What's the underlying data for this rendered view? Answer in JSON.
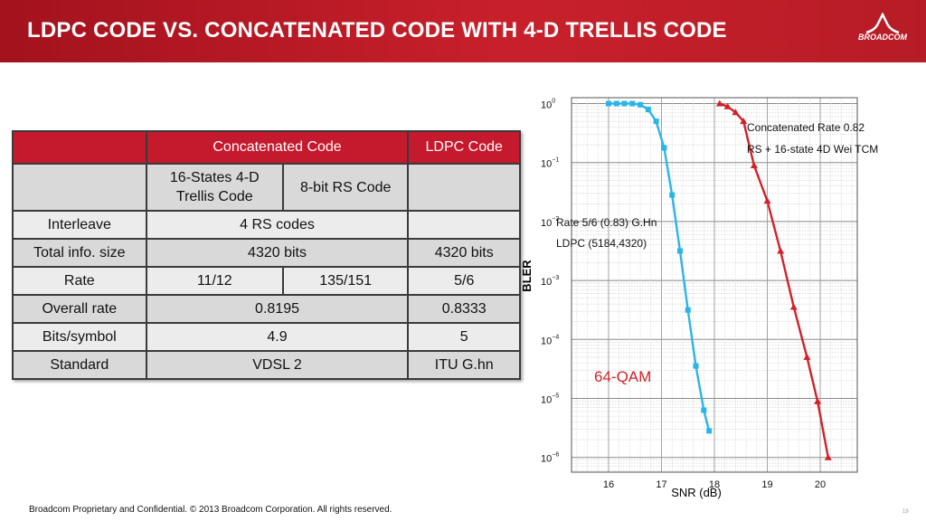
{
  "header": {
    "title": "LDPC CODE VS. CONCATENATED CODE WITH 4-D TRELLIS CODE",
    "logo_text": "BROADCOM"
  },
  "table": {
    "headers": [
      "",
      "Concatenated Code",
      "LDPC Code"
    ],
    "sub_headers": [
      "16-States 4-D Trellis Code",
      "8-bit RS Code"
    ],
    "rows": [
      {
        "label": "Interleave",
        "concat": "4 RS codes",
        "ldpc": ""
      },
      {
        "label": "Total info. size",
        "concat": "4320 bits",
        "ldpc": "4320 bits"
      },
      {
        "label": "Rate",
        "concat_trellis": "11/12",
        "concat_rs": "135/151",
        "ldpc": "5/6"
      },
      {
        "label": "Overall rate",
        "concat": "0.8195",
        "ldpc": "0.8333"
      },
      {
        "label": "Bits/symbol",
        "concat": "4.9",
        "ldpc": "5"
      },
      {
        "label": "Standard",
        "concat": "VDSL 2",
        "ldpc": "ITU G.hn"
      }
    ]
  },
  "chart_data": {
    "type": "line",
    "xlabel": "SNR (dB)",
    "ylabel": "BLER",
    "xlim": [
      15.3,
      20.7
    ],
    "ylim_log10": [
      -6.25,
      0.1
    ],
    "x_ticks": [
      16,
      17,
      18,
      19,
      20
    ],
    "x_tick_labels": [
      "16",
      "17",
      "18",
      "19",
      "20"
    ],
    "y_ticks_log10": [
      0,
      -1,
      -2,
      -3,
      -4,
      -5,
      -6
    ],
    "y_tick_labels": [
      "10",
      "10",
      "10",
      "10",
      "10",
      "10",
      "10"
    ],
    "y_tick_exponents": [
      "0",
      "−1",
      "−2",
      "−3",
      "−4",
      "−5",
      "−6"
    ],
    "log_scale_y": true,
    "grid": true,
    "series": [
      {
        "color": "#29b5e8",
        "marker": "square",
        "points": [
          [
            16.0,
            0.0
          ],
          [
            16.15,
            0.0
          ],
          [
            16.3,
            0.0
          ],
          [
            16.45,
            0.0
          ],
          [
            16.6,
            -0.02
          ],
          [
            16.75,
            -0.1
          ],
          [
            16.9,
            -0.3
          ],
          [
            17.05,
            -0.75
          ],
          [
            17.2,
            -1.55
          ],
          [
            17.35,
            -2.5
          ],
          [
            17.5,
            -3.5
          ],
          [
            17.65,
            -4.45
          ],
          [
            17.8,
            -5.2
          ],
          [
            17.9,
            -5.55
          ]
        ]
      },
      {
        "color": "#d12228",
        "marker": "triangle",
        "points": [
          [
            18.1,
            0.0
          ],
          [
            18.25,
            -0.05
          ],
          [
            18.4,
            -0.15
          ],
          [
            18.55,
            -0.3
          ],
          [
            18.75,
            -1.05
          ],
          [
            19.0,
            -1.65
          ],
          [
            19.25,
            -2.5
          ],
          [
            19.5,
            -3.45
          ],
          [
            19.75,
            -4.3
          ],
          [
            19.95,
            -5.05
          ],
          [
            20.15,
            -6.0
          ]
        ]
      }
    ],
    "annotations": {
      "concat_line1": "Concatenated Rate 0.82",
      "concat_line2": "RS + 16-state 4D Wei TCM",
      "ldpc_line1": "Rate 5/6 (0.83) G.Hn",
      "ldpc_line2": "LDPC (5184,4320)",
      "qam": "64-QAM",
      "qam_color": "#d12228"
    }
  },
  "footer": {
    "text": "Broadcom Proprietary and Confidential.  © 2013 Broadcom Corporation.  All rights reserved.",
    "page_number": "19"
  }
}
